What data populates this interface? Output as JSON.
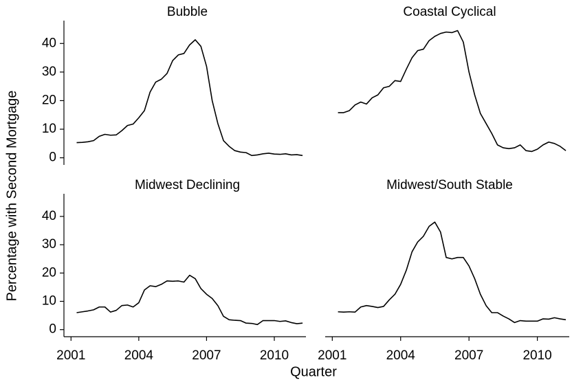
{
  "ylabel": "Percentage with Second Mortgage",
  "xlabel": "Quarter",
  "chart_data": [
    {
      "type": "line",
      "title": "Bubble",
      "color": "#000000",
      "x": [
        2001.25,
        2001.5,
        2001.75,
        2002,
        2002.25,
        2002.5,
        2002.75,
        2003,
        2003.25,
        2003.5,
        2003.75,
        2004,
        2004.25,
        2004.5,
        2004.75,
        2005,
        2005.25,
        2005.5,
        2005.75,
        2006,
        2006.25,
        2006.5,
        2006.75,
        2007,
        2007.25,
        2007.5,
        2007.75,
        2008,
        2008.25,
        2008.5,
        2008.75,
        2009,
        2009.25,
        2009.5,
        2009.75,
        2010,
        2010.25,
        2010.5,
        2010.75,
        2011,
        2011.25
      ],
      "values": [
        5.3,
        5.4,
        5.6,
        6.0,
        7.5,
        8.2,
        7.9,
        8.0,
        9.5,
        11.3,
        11.8,
        14,
        16.5,
        23,
        26.5,
        27.5,
        29.5,
        34,
        36,
        36.5,
        39.5,
        41.3,
        39,
        32,
        20,
        12,
        6,
        4,
        2.5,
        2,
        1.8,
        0.8,
        1,
        1.4,
        1.6,
        1.3,
        1.2,
        1.4,
        1.0,
        1.1,
        0.8
      ],
      "xlim": [
        2000.9,
        2011.4
      ],
      "ylim": [
        -2.5,
        48
      ],
      "yticks": [
        0,
        10,
        20,
        30,
        40
      ]
    },
    {
      "type": "line",
      "title": "Coastal Cyclical",
      "color": "#000000",
      "x": [
        2001.25,
        2001.5,
        2001.75,
        2002,
        2002.25,
        2002.5,
        2002.75,
        2003,
        2003.25,
        2003.5,
        2003.75,
        2004,
        2004.25,
        2004.5,
        2004.75,
        2005,
        2005.25,
        2005.5,
        2005.75,
        2006,
        2006.25,
        2006.5,
        2006.75,
        2007,
        2007.25,
        2007.5,
        2007.75,
        2008,
        2008.25,
        2008.5,
        2008.75,
        2009,
        2009.25,
        2009.5,
        2009.75,
        2010,
        2010.25,
        2010.5,
        2010.75,
        2011,
        2011.25
      ],
      "values": [
        15.8,
        15.8,
        16.5,
        18.5,
        19.5,
        18.8,
        21,
        22,
        24.5,
        25,
        27,
        26.7,
        31,
        35,
        37.5,
        38,
        41,
        42.5,
        43.5,
        44,
        43.8,
        44.5,
        40.5,
        30,
        22,
        15.5,
        12,
        8.5,
        4.5,
        3.5,
        3.2,
        3.5,
        4.5,
        2.5,
        2.2,
        3,
        4.5,
        5.5,
        5,
        4,
        2.5
      ],
      "xlim": [
        2000.9,
        2011.4
      ],
      "ylim": [
        -2.5,
        48
      ]
    },
    {
      "type": "line",
      "title": "Midwest Declining",
      "color": "#000000",
      "x": [
        2001.25,
        2001.5,
        2001.75,
        2002,
        2002.25,
        2002.5,
        2002.75,
        2003,
        2003.25,
        2003.5,
        2003.75,
        2004,
        2004.25,
        2004.5,
        2004.75,
        2005,
        2005.25,
        2005.5,
        2005.75,
        2006,
        2006.25,
        2006.5,
        2006.75,
        2007,
        2007.25,
        2007.5,
        2007.75,
        2008,
        2008.25,
        2008.5,
        2008.75,
        2009,
        2009.25,
        2009.5,
        2009.75,
        2010,
        2010.25,
        2010.5,
        2010.75,
        2011,
        2011.25
      ],
      "values": [
        6,
        6.3,
        6.6,
        7,
        8,
        8,
        6.2,
        6.8,
        8.5,
        8.7,
        8,
        9.5,
        14,
        15.5,
        15.2,
        16,
        17.2,
        17.1,
        17.2,
        16.8,
        19.2,
        18,
        14.5,
        12.5,
        11,
        8.5,
        4.7,
        3.5,
        3.3,
        3.2,
        2.3,
        2.2,
        1.8,
        3.2,
        3.2,
        3.2,
        2.9,
        3.1,
        2.5,
        2.1,
        2.3
      ],
      "xlim": [
        2000.9,
        2011.4
      ],
      "ylim": [
        -2.5,
        48
      ],
      "yticks": [
        0,
        10,
        20,
        30,
        40
      ],
      "xticks": [
        2001,
        2004,
        2007,
        2010
      ]
    },
    {
      "type": "line",
      "title": "Midwest/South Stable",
      "color": "#000000",
      "x": [
        2001.25,
        2001.5,
        2001.75,
        2002,
        2002.25,
        2002.5,
        2002.75,
        2003,
        2003.25,
        2003.5,
        2003.75,
        2004,
        2004.25,
        2004.5,
        2004.75,
        2005,
        2005.25,
        2005.5,
        2005.75,
        2006,
        2006.25,
        2006.5,
        2006.75,
        2007,
        2007.25,
        2007.5,
        2007.75,
        2008,
        2008.25,
        2008.5,
        2008.75,
        2009,
        2009.25,
        2009.5,
        2009.75,
        2010,
        2010.25,
        2010.5,
        2010.75,
        2011,
        2011.25
      ],
      "values": [
        6.3,
        6.2,
        6.3,
        6.2,
        8,
        8.5,
        8.2,
        7.8,
        8.2,
        10.5,
        12.5,
        16,
        21,
        27.5,
        31,
        33,
        36.5,
        38,
        34.5,
        25.5,
        25,
        25.5,
        25.5,
        22.5,
        18,
        12.5,
        8.5,
        6,
        6,
        4.8,
        3.8,
        2.5,
        3.2,
        3,
        3,
        3,
        3.8,
        3.7,
        4.2,
        3.8,
        3.5
      ],
      "xlim": [
        2000.9,
        2011.4
      ],
      "ylim": [
        -2.5,
        48
      ],
      "xticks": [
        2001,
        2004,
        2007,
        2010
      ]
    }
  ]
}
